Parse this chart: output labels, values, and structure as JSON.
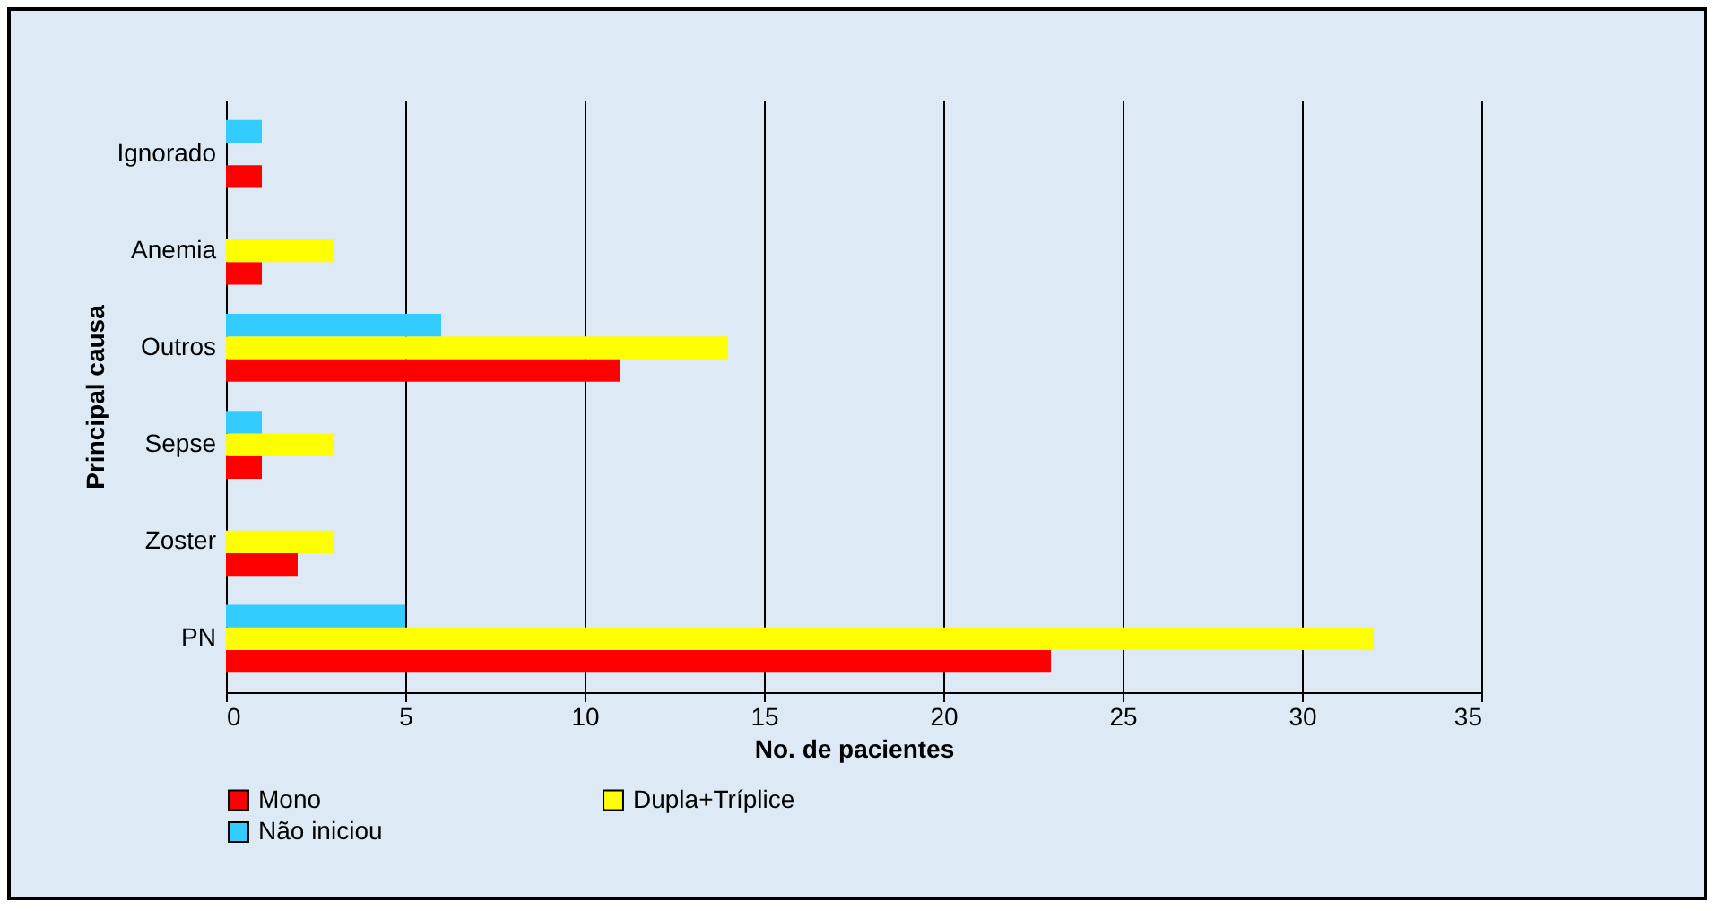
{
  "chart_data": {
    "type": "bar",
    "orientation": "horizontal",
    "xlabel": "No. de pacientes",
    "ylabel": "Principal causa",
    "categories": [
      "Ignorado",
      "Anemia",
      "Outros",
      "Sepse",
      "Zoster",
      "PN"
    ],
    "series": [
      {
        "name": "Mono",
        "color": "#ff0000",
        "values": [
          1,
          1,
          11,
          1,
          2,
          23
        ]
      },
      {
        "name": "Dupla+Tríplice",
        "color": "#ffff00",
        "values": [
          0,
          3,
          14,
          3,
          3,
          32
        ]
      },
      {
        "name": "Não iniciou",
        "color": "#33ccff",
        "values": [
          1,
          0,
          6,
          1,
          0,
          5
        ]
      }
    ],
    "xlim": [
      0,
      35
    ],
    "xticks": [
      0,
      5,
      10,
      15,
      20,
      25,
      30,
      35
    ],
    "grid": "x",
    "legend": "bottom left"
  }
}
